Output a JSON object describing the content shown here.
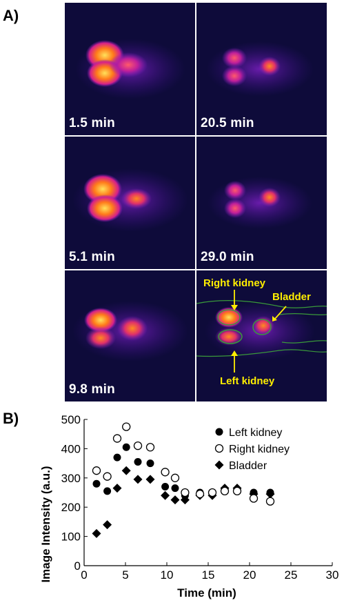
{
  "panel_a_label": "A)",
  "panel_b_label": "B)",
  "frames": [
    {
      "label": "1.5 min"
    },
    {
      "label": "20.5 min"
    },
    {
      "label": "5.1 min"
    },
    {
      "label": "29.0 min"
    },
    {
      "label": "9.8 min"
    },
    {
      "label": ""
    }
  ],
  "annotations": {
    "right_kidney": "Right kidney",
    "bladder": "Bladder",
    "left_kidney": "Left kidney"
  },
  "colors": {
    "annotation": "#ffee00",
    "roi_outline": "#3a9a3a",
    "frame_background": "#0e0b3a"
  },
  "chart_data": {
    "type": "scatter",
    "xlabel": "Time (min)",
    "ylabel": "Image Intensity (a.u.)",
    "xlim": [
      0,
      30
    ],
    "ylim": [
      0,
      500
    ],
    "xticks": [
      0,
      5,
      10,
      15,
      20,
      25,
      30
    ],
    "yticks": [
      0,
      100,
      200,
      300,
      400,
      500
    ],
    "legend_position": "top-right",
    "grid": false,
    "series": [
      {
        "name": "Left kidney",
        "marker": "filled-circle",
        "x": [
          1.5,
          2.8,
          4.0,
          5.1,
          6.5,
          8.0,
          9.8,
          11.0,
          12.2,
          14.0,
          15.5,
          17.0,
          18.5,
          20.5,
          22.5
        ],
        "y": [
          280,
          255,
          370,
          405,
          355,
          350,
          270,
          265,
          240,
          250,
          245,
          260,
          260,
          250,
          250
        ]
      },
      {
        "name": "Right kidney",
        "marker": "open-circle",
        "x": [
          1.5,
          2.8,
          4.0,
          5.1,
          6.5,
          8.0,
          9.8,
          11.0,
          12.2,
          14.0,
          15.5,
          17.0,
          18.5,
          20.5,
          22.5
        ],
        "y": [
          325,
          305,
          435,
          475,
          410,
          405,
          320,
          300,
          250,
          245,
          250,
          255,
          255,
          230,
          220
        ]
      },
      {
        "name": "Bladder",
        "marker": "filled-diamond",
        "x": [
          1.5,
          2.8,
          4.0,
          5.1,
          6.5,
          8.0,
          9.8,
          11.0,
          12.2,
          14.0,
          15.5,
          17.0,
          18.5,
          20.5,
          22.5
        ],
        "y": [
          110,
          140,
          265,
          325,
          295,
          295,
          240,
          225,
          225,
          240,
          240,
          265,
          265,
          245,
          245
        ]
      }
    ]
  }
}
